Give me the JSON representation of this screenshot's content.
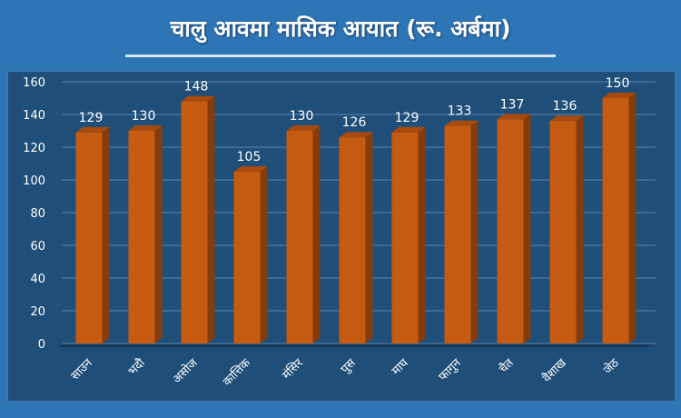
{
  "chart_data": {
    "type": "bar",
    "title": "चालु आवमा मासिक आयात (रू. अर्बमा)",
    "categories": [
      "साउन",
      "भदौ",
      "असोज",
      "कात्तिक",
      "मंसिर",
      "पुस",
      "माघ",
      "फागुन",
      "चैत",
      "वैशाख",
      "जेठ"
    ],
    "values": [
      129,
      130,
      148,
      105,
      130,
      126,
      129,
      133,
      137,
      136,
      150
    ],
    "ylim": [
      0,
      160
    ],
    "yticks": [
      0,
      20,
      40,
      60,
      80,
      100,
      120,
      140,
      160
    ],
    "grid": true,
    "style": "3d",
    "colors": {
      "bar": "#c55a11",
      "bar_side": "#843c0c",
      "bar_top": "#a84a0e",
      "background": "#2e75b6",
      "plot": "#1f4e79",
      "grid": "#5b86b0"
    }
  }
}
